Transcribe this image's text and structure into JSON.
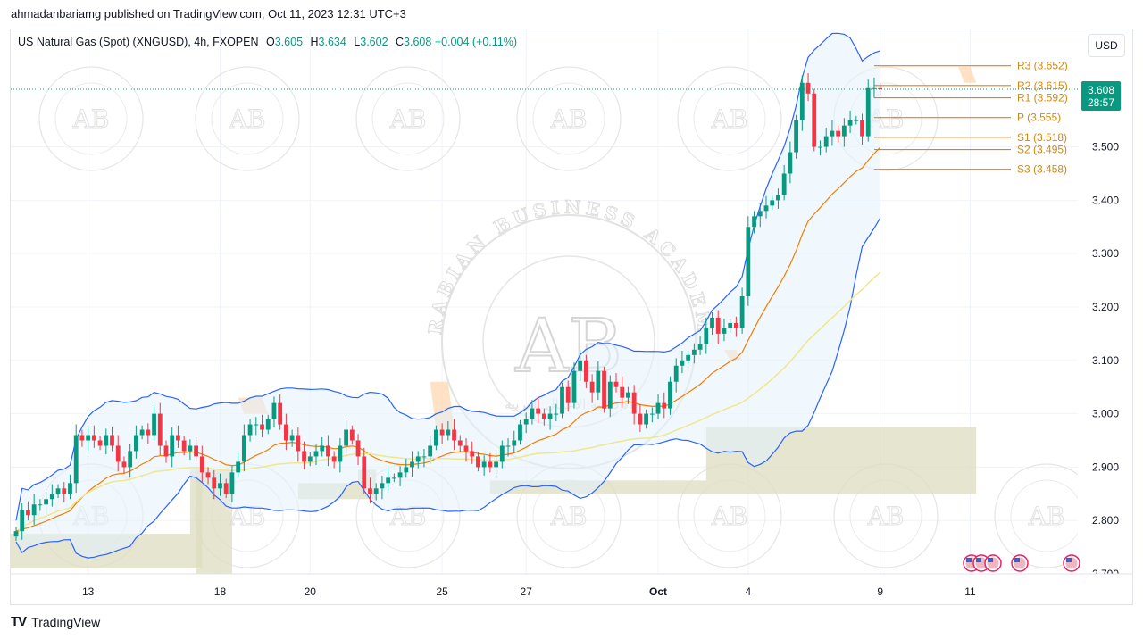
{
  "publisher_line": "ahmadanbariamg published on TradingView.com, Oct 11, 2023 12:31 UTC+3",
  "legend": {
    "symbol": "US Natural Gas (Spot) (XNGUSD), 4h, FXOPEN",
    "open_label": "O",
    "open": "3.605",
    "high_label": "H",
    "high": "3.634",
    "low_label": "L",
    "low": "3.602",
    "close_label": "C",
    "close": "3.608",
    "change": "+0.004 (+0.11%)"
  },
  "currency_button": "USD",
  "footer": {
    "logo": "TV",
    "brand": "TradingView"
  },
  "watermark": {
    "large_text": "ARABIAN BUSINESS ACADEMY",
    "large_text_bottom": "أكاديمية الأعمال العربية",
    "monogram": "AB"
  },
  "colors": {
    "up": "#089981",
    "down": "#f23645",
    "bb": "#2962ff",
    "bb_fill": "#e3f2fd",
    "ema_orange": "#f57c00",
    "ma_yellow": "#f0e68c",
    "cloud": "#dcdcc0",
    "pivot": "#f57c00",
    "price_tag": "#089981"
  },
  "chart_data": {
    "type": "candlestick",
    "title": "",
    "ylim": [
      2.7,
      3.72
    ],
    "y_ticks": [
      "3.500",
      "3.400",
      "3.300",
      "3.200",
      "3.100",
      "3.000",
      "2.900",
      "2.800",
      "2.700"
    ],
    "y_tick_values": [
      3.5,
      3.4,
      3.3,
      3.2,
      3.1,
      3.0,
      2.9,
      2.8,
      2.7
    ],
    "x_labels": [
      "13",
      "18",
      "20",
      "25",
      "27",
      "Oct",
      "4",
      "9",
      "11"
    ],
    "x_label_bars": [
      12,
      34,
      49,
      71,
      85,
      107,
      122,
      144,
      159
    ],
    "last_price": "3.608",
    "countdown": "28:57",
    "pivots": [
      {
        "label": "R3 (3.652)",
        "value": 3.652
      },
      {
        "label": "R2 (3.615)",
        "value": 3.615
      },
      {
        "label": "R1 (3.592)",
        "value": 3.592
      },
      {
        "label": "P (3.555)",
        "value": 3.555
      },
      {
        "label": "S1 (3.518)",
        "value": 3.518
      },
      {
        "label": "S2 (3.495)",
        "value": 3.495
      },
      {
        "label": "S3 (3.458)",
        "value": 3.458
      }
    ],
    "ohlc_closes": [
      2.78,
      2.82,
      2.81,
      2.83,
      2.83,
      2.84,
      2.85,
      2.86,
      2.85,
      2.87,
      2.96,
      2.95,
      2.96,
      2.95,
      2.94,
      2.96,
      2.94,
      2.91,
      2.9,
      2.93,
      2.96,
      2.97,
      2.96,
      3.0,
      2.94,
      2.92,
      2.96,
      2.95,
      2.93,
      2.94,
      2.92,
      2.89,
      2.88,
      2.86,
      2.87,
      2.85,
      2.89,
      2.91,
      2.96,
      2.98,
      2.98,
      2.97,
      2.99,
      3.02,
      2.98,
      2.95,
      2.96,
      2.93,
      2.91,
      2.92,
      2.93,
      2.94,
      2.92,
      2.91,
      2.94,
      2.97,
      2.95,
      2.92,
      2.86,
      2.85,
      2.86,
      2.87,
      2.88,
      2.88,
      2.89,
      2.9,
      2.91,
      2.92,
      2.92,
      2.94,
      2.97,
      2.96,
      2.97,
      2.95,
      2.94,
      2.93,
      2.92,
      2.9,
      2.91,
      2.9,
      2.91,
      2.94,
      2.94,
      2.95,
      2.98,
      2.99,
      3.01,
      3.0,
      2.99,
      3.0,
      3.0,
      3.05,
      3.02,
      3.08,
      3.1,
      3.06,
      3.04,
      3.08,
      3.01,
      3.06,
      3.05,
      3.03,
      3.04,
      3.0,
      2.98,
      3.0,
      3.0,
      3.02,
      3.01,
      3.06,
      3.09,
      3.1,
      3.11,
      3.12,
      3.13,
      3.16,
      3.18,
      3.15,
      3.16,
      3.17,
      3.16,
      3.22,
      3.35,
      3.37,
      3.38,
      3.39,
      3.4,
      3.41,
      3.45,
      3.49,
      3.55,
      3.62,
      3.6,
      3.5,
      3.5,
      3.52,
      3.53,
      3.52,
      3.54,
      3.55,
      3.55,
      3.52,
      3.61,
      3.61,
      3.608
    ],
    "series": [
      {
        "name": "",
        "type": "bollinger",
        "role": "bands"
      },
      {
        "name": "",
        "type": "ema",
        "role": "trend"
      },
      {
        "name": "",
        "type": "sma",
        "role": "slow trend"
      }
    ]
  }
}
